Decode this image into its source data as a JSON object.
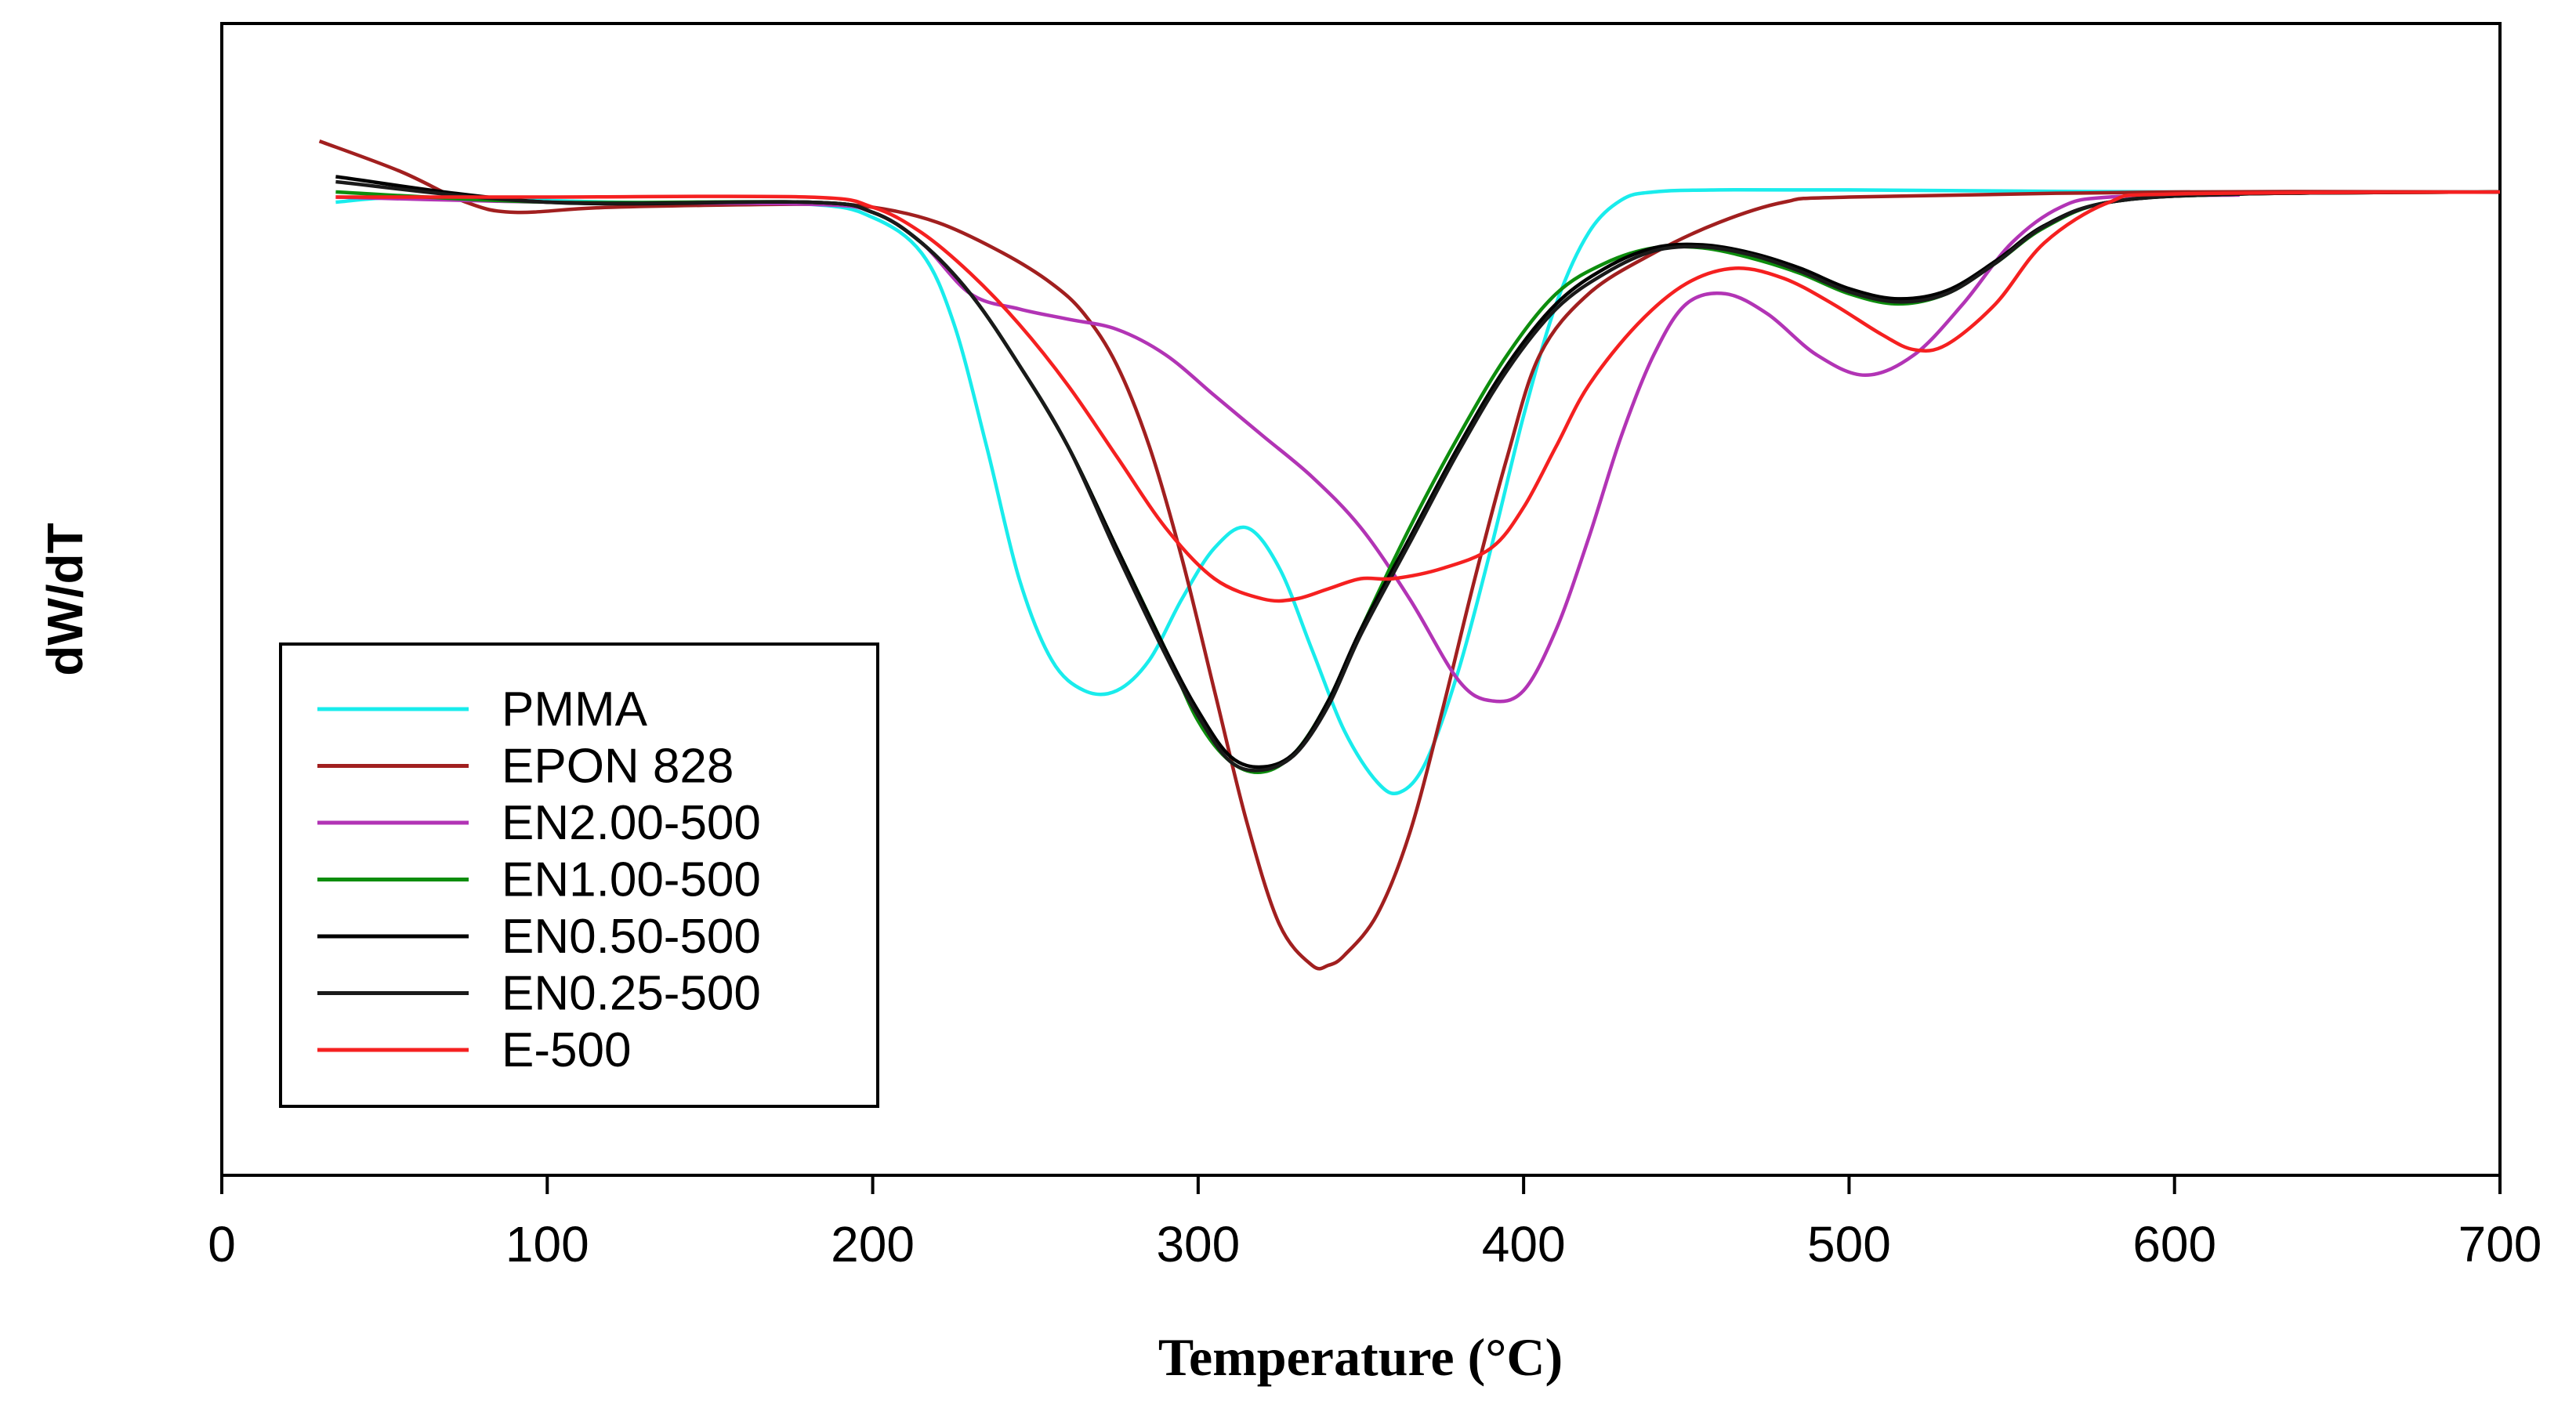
{
  "chart_data": {
    "type": "line",
    "title": "",
    "xlabel": "Temperature (°C)",
    "ylabel": "dW/dT",
    "xlim": [
      0,
      700
    ],
    "ylim": [
      -1.0,
      0.1
    ],
    "x_ticks": [
      "0",
      "100",
      "200",
      "300",
      "400",
      "500",
      "600",
      "700"
    ],
    "grid": false,
    "legend_position": "bottom-left",
    "series": [
      {
        "name": "PMMA",
        "color": "#19ecec",
        "x": [
          35,
          60,
          120,
          180,
          200,
          215,
          225,
          235,
          245,
          255,
          265,
          275,
          285,
          295,
          305,
          315,
          325,
          335,
          345,
          355,
          362,
          370,
          380,
          390,
          400,
          410,
          420,
          430,
          440,
          460,
          500,
          600,
          700
        ],
        "y": [
          -0.01,
          -0.005,
          -0.01,
          -0.012,
          -0.025,
          -0.06,
          -0.13,
          -0.25,
          -0.38,
          -0.46,
          -0.49,
          -0.49,
          -0.46,
          -0.4,
          -0.35,
          -0.33,
          -0.37,
          -0.45,
          -0.53,
          -0.58,
          -0.59,
          -0.56,
          -0.47,
          -0.35,
          -0.22,
          -0.11,
          -0.04,
          -0.008,
          0.0,
          0.002,
          0.002,
          0.0,
          0.0
        ]
      },
      {
        "name": "EPON 828",
        "color": "#a11f1f",
        "x": [
          30,
          55,
          75,
          90,
          120,
          180,
          200,
          220,
          240,
          255,
          265,
          275,
          285,
          295,
          305,
          315,
          325,
          335,
          340,
          345,
          355,
          365,
          375,
          385,
          395,
          405,
          420,
          440,
          460,
          480,
          500,
          600,
          700
        ],
        "y": [
          0.05,
          0.02,
          -0.01,
          -0.02,
          -0.015,
          -0.012,
          -0.015,
          -0.03,
          -0.06,
          -0.09,
          -0.12,
          -0.17,
          -0.25,
          -0.36,
          -0.49,
          -0.62,
          -0.72,
          -0.76,
          -0.76,
          -0.75,
          -0.71,
          -0.63,
          -0.51,
          -0.38,
          -0.26,
          -0.16,
          -0.1,
          -0.06,
          -0.03,
          -0.01,
          -0.005,
          0.0,
          0.0
        ]
      },
      {
        "name": "EN2.00-500",
        "color": "#b234b5",
        "x": [
          35,
          100,
          180,
          200,
          215,
          230,
          245,
          260,
          275,
          290,
          305,
          320,
          335,
          350,
          365,
          380,
          390,
          400,
          410,
          420,
          430,
          440,
          450,
          462,
          475,
          490,
          505,
          520,
          535,
          550,
          565,
          580,
          620
        ],
        "y": [
          -0.005,
          -0.01,
          -0.012,
          -0.02,
          -0.05,
          -0.1,
          -0.115,
          -0.125,
          -0.135,
          -0.16,
          -0.2,
          -0.24,
          -0.28,
          -0.33,
          -0.4,
          -0.48,
          -0.5,
          -0.49,
          -0.43,
          -0.34,
          -0.24,
          -0.16,
          -0.11,
          -0.1,
          -0.12,
          -0.16,
          -0.18,
          -0.16,
          -0.11,
          -0.05,
          -0.015,
          -0.005,
          -0.003
        ]
      },
      {
        "name": "EN1.00-500",
        "color": "#0d8d0d",
        "x": [
          35,
          100,
          180,
          200,
          215,
          230,
          245,
          260,
          275,
          290,
          300,
          310,
          320,
          330,
          340,
          350,
          365,
          380,
          395,
          410,
          425,
          440,
          455,
          470,
          485,
          500,
          515,
          530,
          545,
          560,
          580,
          620,
          700
        ],
        "y": [
          0.0,
          -0.01,
          -0.01,
          -0.02,
          -0.05,
          -0.1,
          -0.17,
          -0.25,
          -0.35,
          -0.45,
          -0.52,
          -0.56,
          -0.57,
          -0.55,
          -0.5,
          -0.43,
          -0.33,
          -0.24,
          -0.16,
          -0.1,
          -0.07,
          -0.055,
          -0.055,
          -0.065,
          -0.08,
          -0.1,
          -0.11,
          -0.1,
          -0.07,
          -0.035,
          -0.01,
          -0.002,
          0.0
        ]
      },
      {
        "name": "EN0.50-500",
        "color": "#000000",
        "x": [
          35,
          100,
          180,
          200,
          215,
          230,
          245,
          260,
          275,
          290,
          300,
          310,
          320,
          330,
          340,
          350,
          365,
          380,
          395,
          410,
          425,
          440,
          455,
          470,
          485,
          500,
          515,
          530,
          545,
          560,
          580,
          620,
          700
        ],
        "y": [
          0.015,
          -0.01,
          -0.01,
          -0.02,
          -0.05,
          -0.1,
          -0.17,
          -0.25,
          -0.35,
          -0.45,
          -0.51,
          -0.555,
          -0.565,
          -0.55,
          -0.5,
          -0.43,
          -0.34,
          -0.25,
          -0.17,
          -0.11,
          -0.075,
          -0.055,
          -0.052,
          -0.06,
          -0.075,
          -0.095,
          -0.105,
          -0.097,
          -0.068,
          -0.033,
          -0.01,
          -0.002,
          0.0
        ]
      },
      {
        "name": "EN0.25-500",
        "color": "#1a1a1a",
        "x": [
          35,
          100,
          180,
          200,
          215,
          230,
          245,
          260,
          275,
          290,
          300,
          310,
          320,
          330,
          340,
          350,
          365,
          380,
          395,
          410,
          425,
          440,
          455,
          470,
          485,
          500,
          515,
          530,
          545,
          560,
          580,
          620,
          700
        ],
        "y": [
          0.01,
          -0.01,
          -0.01,
          -0.02,
          -0.05,
          -0.1,
          -0.17,
          -0.25,
          -0.355,
          -0.455,
          -0.515,
          -0.56,
          -0.568,
          -0.552,
          -0.505,
          -0.435,
          -0.345,
          -0.255,
          -0.175,
          -0.115,
          -0.08,
          -0.058,
          -0.054,
          -0.062,
          -0.078,
          -0.098,
          -0.108,
          -0.1,
          -0.07,
          -0.034,
          -0.01,
          -0.002,
          0.0
        ]
      },
      {
        "name": "E-500",
        "color": "#f52020",
        "x": [
          35,
          100,
          180,
          200,
          215,
          230,
          245,
          260,
          275,
          290,
          305,
          320,
          330,
          340,
          350,
          360,
          375,
          390,
          400,
          410,
          420,
          435,
          450,
          465,
          480,
          495,
          510,
          520,
          530,
          545,
          560,
          580,
          600,
          700
        ],
        "y": [
          -0.005,
          -0.005,
          -0.005,
          -0.015,
          -0.04,
          -0.08,
          -0.13,
          -0.19,
          -0.26,
          -0.33,
          -0.38,
          -0.4,
          -0.4,
          -0.39,
          -0.38,
          -0.38,
          -0.37,
          -0.35,
          -0.31,
          -0.25,
          -0.19,
          -0.13,
          -0.09,
          -0.075,
          -0.085,
          -0.11,
          -0.14,
          -0.155,
          -0.15,
          -0.11,
          -0.05,
          -0.01,
          -0.002,
          0.0
        ]
      }
    ]
  }
}
